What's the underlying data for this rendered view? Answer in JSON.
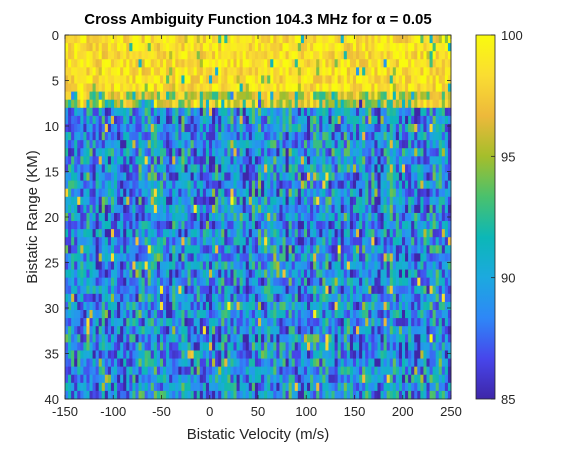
{
  "chart_data": {
    "type": "heatmap",
    "title": "Cross Ambiguity Function 104.3 MHz for α = 0.05",
    "xlabel": "Bistatic Velocity (m/s)",
    "ylabel": "Bistatic Range (KM)",
    "xlim": [
      -150,
      250
    ],
    "ylim": [
      0,
      40
    ],
    "y_direction": "reversed",
    "x_ticks": [
      -150,
      -100,
      -50,
      0,
      50,
      100,
      150,
      200,
      250
    ],
    "y_ticks": [
      0,
      5,
      10,
      15,
      20,
      25,
      30,
      35,
      40
    ],
    "colorbar": {
      "clim": [
        85,
        100
      ],
      "ticks": [
        85,
        90,
        95,
        100
      ],
      "colormap": "parula",
      "colors": [
        "#3e26a8",
        "#4746eb",
        "#2e87f7",
        "#1ca9df",
        "#0cb7b7",
        "#4ac16d",
        "#a5be2b",
        "#edb93b",
        "#fadd32",
        "#f9fb0e"
      ]
    },
    "pattern_summary": {
      "range_0_to_8_km": "values mostly near 97-100 (yellow band)",
      "range_8_to_40_km": "noise-like values spanning 85-95, mostly 86-93",
      "strong_column": "narrow peak near 0 m/s at range 0-1 km"
    }
  },
  "grid": {
    "x_cells": 126,
    "y_cells": 45
  }
}
